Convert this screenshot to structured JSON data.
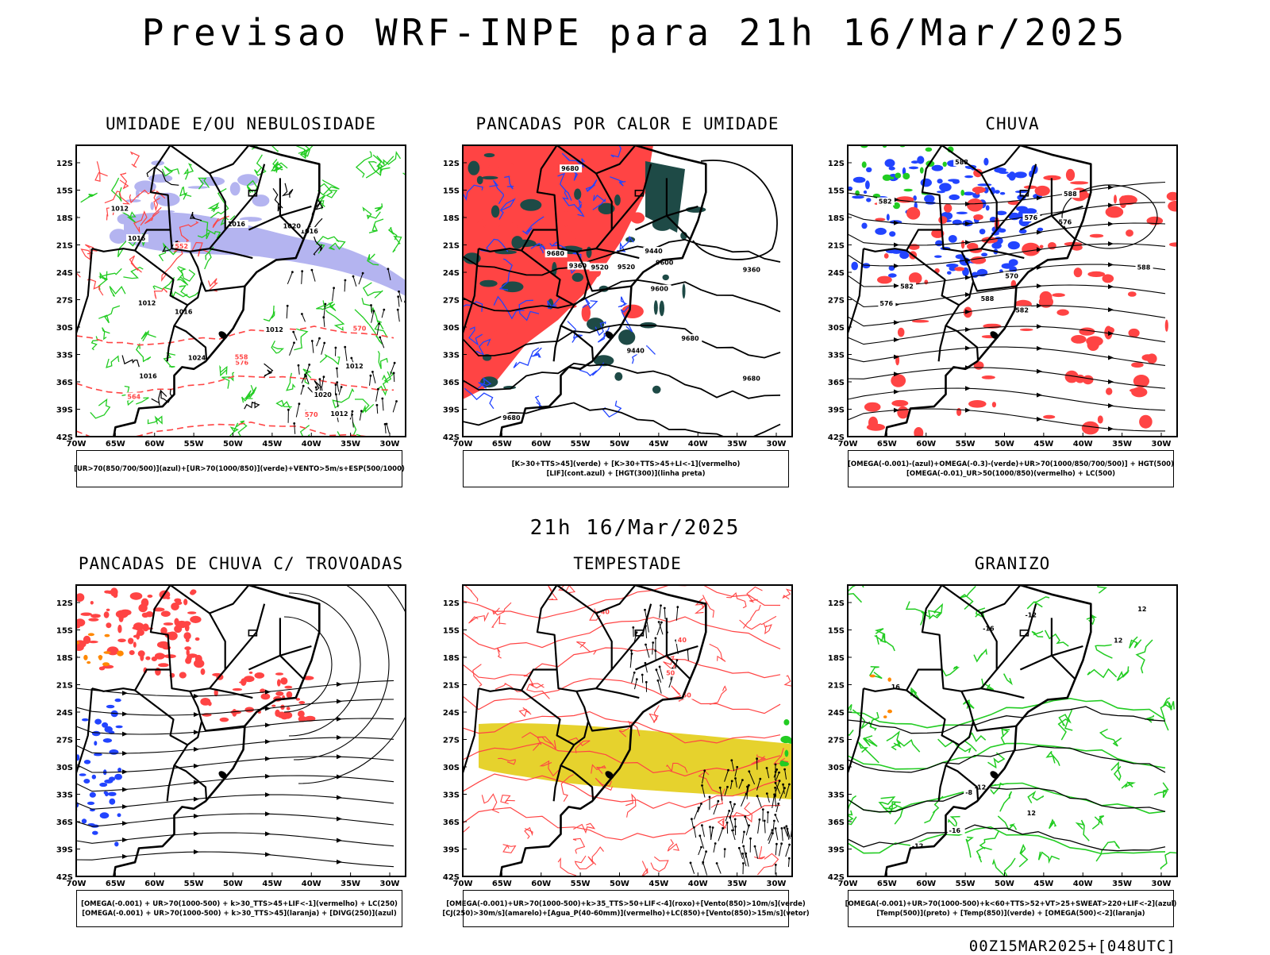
{
  "header": {
    "title": "Previsao WRF-INPE  para 21h 16/Mar/2025",
    "mid_time": "21h 16/Mar/2025",
    "run_stamp": "00Z15MAR2025+[048UTC]"
  },
  "axes": {
    "lat_labels": [
      "12S",
      "15S",
      "18S",
      "21S",
      "24S",
      "27S",
      "30S",
      "33S",
      "36S",
      "39S",
      "42S"
    ],
    "lon_labels": [
      "70W",
      "65W",
      "60W",
      "55W",
      "50W",
      "45W",
      "40W",
      "35W",
      "30W"
    ]
  },
  "colors": {
    "green": "#22cc22",
    "blue": "#2244ff",
    "red": "#ff4444",
    "dark_teal": "#1e4a46",
    "lavender": "#b4b4f0",
    "yellow": "#e6d22d",
    "orange": "#ff8800",
    "magenta": "#cc44cc"
  },
  "panels": [
    {
      "title": "UMIDADE E/OU NEBULOSIDADE",
      "legend": [
        "[UR>70(850/700/500)](azul)+[UR>70(1000/850)](verde)+VENTO>5m/s+ESP(500/1000)"
      ],
      "labels": [
        "1012",
        "1012",
        "1012",
        "1012",
        "1012",
        "1016",
        "1016",
        "1016",
        "1016",
        "1016",
        "1020",
        "1020",
        "1024",
        "570",
        "570",
        "576",
        "564",
        "558",
        "552"
      ]
    },
    {
      "title": "PANCADAS POR CALOR E UMIDADE",
      "legend": [
        "[K>30+TTS>45](verde) + [K>30+TTS>45+LI<-1](vermelho)",
        "[LIF](cont.azul) + [HGT(300)](linha preta)"
      ],
      "labels": [
        "9680",
        "9680",
        "9680",
        "9680",
        "9680",
        "9600",
        "9600",
        "9520",
        "9520",
        "9440",
        "9440",
        "9360",
        "9360"
      ]
    },
    {
      "title": "CHUVA",
      "legend": [
        "[OMEGA(-0.001)-(azul)+OMEGA(-0.3)-(verde)+UR>70(1000/850/700/500)] + HGT(500)",
        "[OMEGA(-0.01)_UR>50(1000/850)(vermelho) + LC(500)"
      ],
      "labels": [
        "588",
        "588",
        "588",
        "588",
        "582",
        "582",
        "582",
        "576",
        "576",
        "576",
        "570"
      ]
    },
    {
      "title": "PANCADAS DE CHUVA C/ TROVOADAS",
      "legend": [
        "[OMEGA(-0.001) + UR>70(1000-500) + k>30_TTS>45+LIF<-1](vermelho) + LC(250)",
        "[OMEGA(-0.001) + UR>70(1000-500) + k>30_TTS>45](laranja) + [DIVG(250)](azul)"
      ],
      "labels": []
    },
    {
      "title": "TEMPESTADE",
      "legend": [
        "[OMEGA(-0.001)+UR>70(1000-500)+k>35_TTS>50+LIF<-4](roxo)+[Vento(850)>10m/s](verde)",
        "[CJ(250)>30m/s](amarelo)+[Agua_P(40-60mm)](vermelho)+LC(850)+[Vento(850)>15m/s](vetor)"
      ],
      "labels": [
        "50",
        "50",
        "40",
        "40"
      ]
    },
    {
      "title": "GRANIZO",
      "legend": [
        "[OMEGA(-0.001)+UR>70(1000-500)+k<60+TTS>52+VT>25+SWEAT>220+LIF<-2](azul)",
        "[Temp(500)](preto) + [Temp(850)](verde) + [OMEGA(500)<-2](laranja)"
      ],
      "labels": [
        "-8",
        "-12",
        "-12",
        "-12",
        "-16",
        "-16",
        "12",
        "12",
        "12",
        "16"
      ]
    }
  ]
}
